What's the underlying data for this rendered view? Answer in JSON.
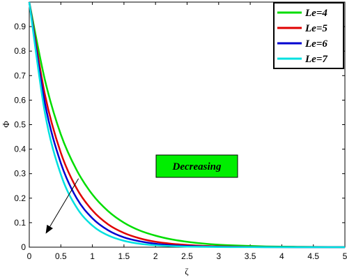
{
  "chart_data": {
    "type": "line",
    "xlabel": "ζ",
    "ylabel": "Φ",
    "xlim": [
      0,
      5
    ],
    "ylim": [
      0,
      1
    ],
    "xticks": [
      "0",
      "0.5",
      "1",
      "1.5",
      "2",
      "2.5",
      "3",
      "3.5",
      "4",
      "4.5",
      "5"
    ],
    "yticks": [
      "0",
      "0.1",
      "0.2",
      "0.3",
      "0.4",
      "0.5",
      "0.6",
      "0.7",
      "0.8",
      "0.9"
    ],
    "grid": false,
    "legend_position": "top-right",
    "x": [
      0,
      0.25,
      0.5,
      0.75,
      1,
      1.25,
      1.5,
      1.75,
      2,
      2.25,
      2.5,
      2.75,
      3,
      3.25,
      3.5,
      3.75,
      4,
      4.25,
      4.5,
      4.75,
      5
    ],
    "series": [
      {
        "name": "Le=4",
        "color": "#00dd00",
        "values": [
          1.0,
          0.68,
          0.46,
          0.315,
          0.215,
          0.147,
          0.1,
          0.068,
          0.047,
          0.032,
          0.022,
          0.015,
          0.01,
          0.007,
          0.005,
          0.003,
          0.002,
          0.0015,
          0.001,
          0.0007,
          0.0005
        ]
      },
      {
        "name": "Le=5",
        "color": "#e00000",
        "values": [
          1.0,
          0.62,
          0.385,
          0.24,
          0.15,
          0.093,
          0.058,
          0.036,
          0.022,
          0.014,
          0.009,
          0.0055,
          0.0035,
          0.002,
          0.0013,
          0.0008,
          0.0005,
          0.0003,
          0.0002,
          0.0001,
          0.0001
        ]
      },
      {
        "name": "Le=6",
        "color": "#0000d0",
        "values": [
          1.0,
          0.585,
          0.343,
          0.2,
          0.118,
          0.069,
          0.04,
          0.024,
          0.014,
          0.008,
          0.005,
          0.003,
          0.0017,
          0.001,
          0.0006,
          0.0003,
          0.0002,
          0.0001,
          0.0001,
          0.0,
          0.0
        ]
      },
      {
        "name": "Le=7",
        "color": "#00e0e0",
        "values": [
          1.0,
          0.545,
          0.297,
          0.162,
          0.088,
          0.048,
          0.026,
          0.014,
          0.008,
          0.0043,
          0.0023,
          0.0013,
          0.0007,
          0.0004,
          0.0002,
          0.0001,
          0.0001,
          0.0,
          0.0,
          0.0,
          0.0
        ]
      }
    ],
    "annotation": {
      "text": "Decreasing",
      "box_color": "#00ee00",
      "arrow_tail": [
        0.78,
        0.28
      ],
      "arrow_head": [
        0.26,
        0.055
      ]
    }
  }
}
